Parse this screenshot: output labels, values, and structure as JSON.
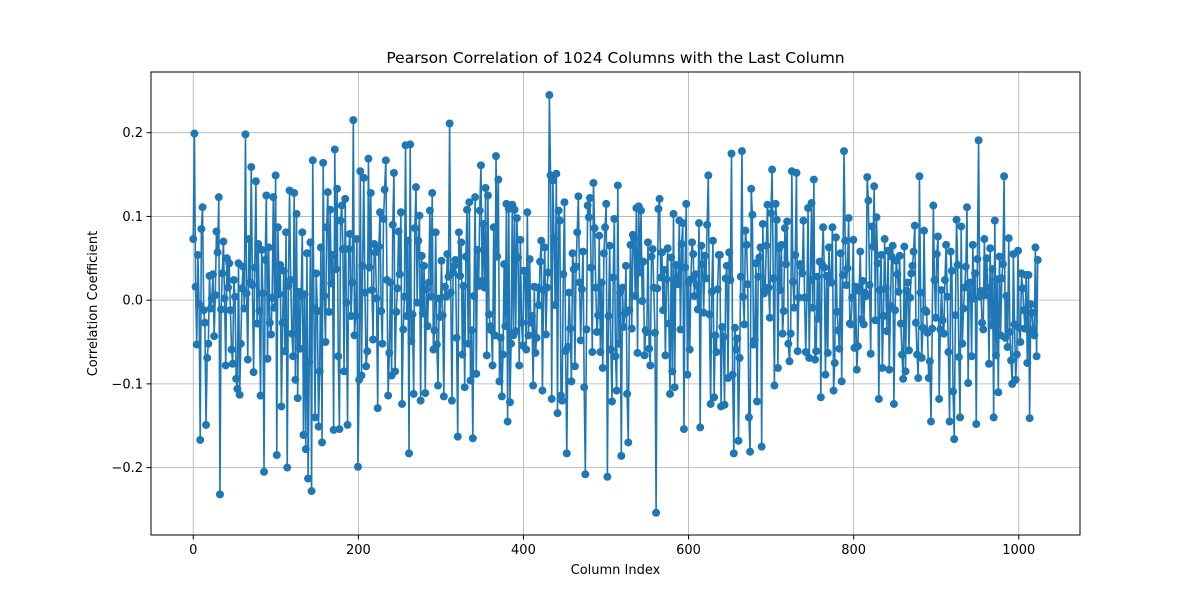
{
  "colors": {
    "series": "#1f77b4",
    "grid": "#b0b0b0",
    "axes": "#000000",
    "background": "#ffffff"
  },
  "chart_data": {
    "type": "line",
    "title": "Pearson Correlation of 1024 Columns with the Last Column",
    "xlabel": "Column Index",
    "ylabel": "Correlation Coefficient",
    "xlim": [
      -51.2,
      1074.2
    ],
    "ylim": [
      -0.2805,
      0.2725
    ],
    "xticks": [
      0,
      200,
      400,
      600,
      800,
      1000
    ],
    "yticks": [
      -0.2,
      -0.1,
      0.0,
      0.1,
      0.2
    ],
    "xtick_labels": [
      "0",
      "200",
      "400",
      "600",
      "800",
      "1000"
    ],
    "ytick_labels": [
      "−0.2",
      "−0.1",
      "0.0",
      "0.1",
      "0.2"
    ],
    "grid": true,
    "legend": "none",
    "marker": "circle",
    "series": [
      {
        "x_start": 0,
        "x_end": 1023,
        "values": [
          0.073,
          0.199,
          0.016,
          -0.053,
          0.054,
          -0.005,
          -0.167,
          0.085,
          0.111,
          -0.012,
          -0.027,
          -0.149,
          -0.069,
          -0.052,
          0.029,
          -0.01,
          0.002,
          0.031,
          -0.043,
          0.006,
          0.082,
          0.057,
          0.123,
          -0.232,
          -0.011,
          0.032,
          0.07,
          0.002,
          -0.078,
          0.05,
          0.015,
          0.044,
          -0.012,
          -0.059,
          -0.076,
          0.024,
          0.004,
          -0.094,
          -0.106,
          0.044,
          -0.113,
          -0.052,
          0.014,
          0.04,
          -0.01,
          0.198,
          0.008,
          -0.071,
          0.073,
          0.021,
          0.159,
          0.018,
          -0.086,
          0.039,
          0.142,
          -0.028,
          0.067,
          -0.013,
          -0.114,
          0.06,
          0.008,
          -0.205,
          0.048,
          0.125,
          -0.07,
          0.063,
          -0.027,
          -0.041,
          0.003,
          0.123,
          -0.009,
          0.149,
          -0.185,
          0.087,
          0.007,
          0.042,
          -0.127,
          -0.027,
          0.035,
          -0.061,
          0.081,
          -0.2,
          0.017,
          0.131,
          0.024,
          -0.04,
          -0.067,
          0.128,
          -0.095,
          0.103,
          -0.117,
          0.01,
          -0.058,
          0.005,
          0.081,
          -0.161,
          0.007,
          -0.178,
          0.056,
          -0.213,
          -0.074,
          0.069,
          -0.228,
          0.167,
          -0.01,
          -0.14,
          0.032,
          -0.013,
          -0.151,
          -0.085,
          0.063,
          -0.17,
          0.164,
          0.005,
          -0.05,
          0.087,
          0.129,
          -0.014,
          0.108,
          0.02,
          0.054,
          -0.155,
          0.18,
          0.037,
          0.133,
          -0.067,
          -0.154,
          0.095,
          0.113,
          0.061,
          -0.085,
          0.121,
          -0.003,
          -0.149,
          0.061,
          0.079,
          -0.019,
          0.021,
          0.215,
          -0.042,
          -0.019,
          0.073,
          -0.199,
          -0.095,
          0.154,
          -0.09,
          0.041,
          0.146,
          0.009,
          -0.079,
          -0.061,
          0.169,
          0.039,
          0.128,
          0.012,
          -0.047,
          0.067,
          0.057,
          0.002,
          -0.129,
          0.064,
          0.105,
          -0.013,
          -0.052,
          0.097,
          0.132,
          0.167,
          0.024,
          -0.114,
          -0.063,
          0.021,
          -0.09,
          0.09,
          0.152,
          -0.085,
          -0.014,
          0.014,
          0.082,
          0.031,
          0.105,
          -0.124,
          -0.035,
          0.004,
          0.185,
          -0.019,
          0.071,
          -0.183,
          0.186,
          -0.049,
          -0.017,
          -0.112,
          0.086,
          0.135,
          -0.003,
          0.071,
          0.101,
          -0.12,
          0.053,
          -0.016,
          0.041,
          -0.111,
          0.013,
          -0.031,
          0.021,
          0.107,
          0.004,
          0.128,
          -0.059,
          -0.036,
          0.081,
          -0.053,
          -0.102,
          0.002,
          -0.02,
          0.047,
          -0.018,
          -0.115,
          0.016,
          0.004,
          0.055,
          0.028,
          0.211,
          0.009,
          -0.12,
          0.033,
          0.041,
          0.048,
          -0.045,
          -0.163,
          0.081,
          0.029,
          0.069,
          -0.065,
          0.017,
          -0.104,
          0.052,
          0.108,
          -0.052,
          0.117,
          -0.096,
          -0.036,
          -0.165,
          0.005,
          0.123,
          -0.088,
          0.06,
          0.017,
          0.107,
          0.161,
          0.023,
          0.091,
          0.015,
          0.134,
          -0.066,
          0.125,
          -0.017,
          -0.031,
          -0.036,
          -0.078,
          0.087,
          -0.042,
          0.172,
          0.052,
          0.144,
          -0.097,
          -0.045,
          -0.115,
          -0.065,
          0.043,
          -0.031,
          0.115,
          -0.145,
          0.109,
          -0.122,
          -0.052,
          0.114,
          -0.042,
          0.108,
          -0.037,
          0.098,
          0.051,
          -0.078,
          0.072,
          -0.027,
          -0.054,
          0.035,
          0.035,
          -0.059,
          0.105,
          -0.042,
          0.049,
          -0.027,
          -0.019,
          -0.102,
          0.016,
          -0.063,
          -0.045,
          0.015,
          -0.006,
          0.046,
          0.071,
          -0.108,
          0.012,
          0.063,
          -0.041,
          0.015,
          0.033,
          0.245,
          0.149,
          -0.118,
          0.143,
          0.074,
          -0.006,
          0.151,
          -0.135,
          0.107,
          0.095,
          -0.114,
          -0.12,
          0.031,
          0.117,
          -0.061,
          -0.183,
          -0.056,
          0.009,
          -0.034,
          -0.097,
          0.056,
          0.037,
          -0.079,
          0.04,
          0.081,
          0.124,
          0.021,
          -0.048,
          0.013,
          0.058,
          -0.104,
          -0.208,
          -0.035,
          0.113,
          0.099,
          0.122,
          0.039,
          -0.062,
          0.14,
          0.086,
          0.015,
          -0.038,
          -0.018,
          0.077,
          -0.062,
          0.021,
          -0.081,
          0.056,
          0.087,
          0.115,
          -0.211,
          -0.019,
          0.065,
          -0.059,
          -0.121,
          0.027,
          0.097,
          -0.067,
          -0.108,
          0.137,
          -0.052,
          0.009,
          -0.186,
          0.015,
          -0.032,
          -0.016,
          0.041,
          -0.112,
          -0.17,
          -0.012,
          0.066,
          -0.034,
          0.078,
          0.074,
          0.005,
          0.11,
          -0.063,
          0.112,
          0.033,
          0.107,
          -0.001,
          0.046,
          -0.066,
          -0.036,
          -0.038,
          0.069,
          -0.058,
          -0.078,
          0.052,
          0.061,
          0.015,
          -0.039,
          -0.254,
          0.014,
          0.109,
          0.121,
          0.027,
          0.057,
          -0.012,
          0.036,
          -0.066,
          0.025,
          0.062,
          -0.028,
          -0.112,
          0.051,
          -0.085,
          0.103,
          -0.104,
          0.042,
          0.027,
          0.019,
          0.095,
          -0.035,
          0.067,
          0.092,
          -0.154,
          0.039,
          0.115,
          -0.089,
          0.021,
          -0.059,
          0.025,
          0.069,
          0.055,
          0.005,
          0.031,
          0.018,
          -0.011,
          0.092,
          -0.152,
          0.065,
          0.043,
          -0.015,
          0.053,
          0.026,
          0.09,
          0.149,
          -0.017,
          -0.124,
          0.01,
          0.071,
          -0.116,
          -0.042,
          -0.062,
          0.013,
          0.054,
          0.054,
          -0.127,
          -0.032,
          -0.044,
          -0.125,
          0.026,
          0.041,
          -0.093,
          0.057,
          0.024,
          0.175,
          -0.089,
          -0.183,
          -0.033,
          -0.059,
          -0.046,
          -0.168,
          -0.069,
          0.028,
          0.178,
          0.004,
          -0.029,
          0.083,
          0.066,
          0.019,
          -0.14,
          -0.181,
          0.133,
          0.102,
          -0.053,
          -0.048,
          0.044,
          -0.121,
          0.028,
          0.051,
          0.063,
          -0.175,
          0.091,
          0.008,
          0.012,
          0.065,
          0.114,
          0.015,
          -0.021,
          0.104,
          0.156,
          0.026,
          -0.102,
          0.115,
          0.096,
          -0.081,
          0.062,
          0.012,
          0.066,
          -0.04,
          -0.013,
          0.086,
          0.043,
          0.094,
          -0.052,
          -0.073,
          -0.04,
          0.154,
          0.022,
          -0.009,
          0.054,
          0.152,
          -0.061,
          0.003,
          0.043,
          0.04,
          0.032,
          0.095,
          0.003,
          -0.062,
          0.003,
          0.11,
          -0.069,
          0.024,
          0.116,
          -0.009,
          0.144,
          -0.071,
          -0.061,
          0.028,
          -0.022,
          0.046,
          -0.116,
          0.043,
          0.087,
          0.039,
          -0.089,
          0.029,
          -0.063,
          0.063,
          0.023,
          0.021,
          0.087,
          -0.108,
          -0.075,
          0.075,
          -0.014,
          -0.036,
          -0.058,
          0.056,
          -0.097,
          0.03,
          0.178,
          0.071,
          0.018,
          0.038,
          0.098,
          -0.028,
          -0.029,
          0.003,
          0.072,
          -0.057,
          0.016,
          -0.083,
          -0.055,
          0.011,
          0.058,
          -0.023,
          0.023,
          -0.029,
          0.009,
          0.005,
          0.147,
          0.119,
          0.018,
          -0.064,
          0.088,
          0.064,
          0.136,
          -0.024,
          0.099,
          0.044,
          -0.118,
          0.012,
          0.054,
          -0.081,
          -0.019,
          0.073,
          0.014,
          -0.037,
          0.059,
          -0.083,
          -0.007,
          0.052,
          0.065,
          -0.124,
          -0.012,
          0.047,
          0.031,
          0.01,
          0.053,
          -0.028,
          -0.065,
          -0.094,
          0.064,
          -0.085,
          0.011,
          0.021,
          -0.06,
          0.003,
          0.032,
          0.041,
          0.058,
          0.089,
          -0.027,
          -0.065,
          -0.093,
          0.148,
          0.009,
          -0.069,
          -0.033,
          0.083,
          -0.012,
          -0.014,
          -0.039,
          -0.093,
          -0.073,
          -0.145,
          -0.034,
          0.113,
          0.024,
          -0.021,
          0.055,
          0.076,
          -0.118,
          -0.035,
          0.012,
          -0.024,
          -0.04,
          0.024,
          0.066,
          0.004,
          -0.062,
          -0.145,
          0.058,
          0.035,
          -0.109,
          -0.166,
          -0.018,
          0.096,
          0.042,
          -0.068,
          -0.14,
          0.088,
          -0.052,
          -0.01,
          0.015,
          0.04,
          0.111,
          -0.099,
          0.021,
          0.021,
          -0.067,
          0.066,
          0.002,
          0.032,
          -0.148,
          0.049,
          0.191,
          0.004,
          0.011,
          -0.027,
          -0.035,
          0.073,
          0.006,
          0.05,
          0.015,
          -0.076,
          0.062,
          -0.03,
          0.037,
          -0.14,
          0.095,
          -0.066,
          0.025,
          -0.11,
          0.052,
          -0.042,
          0.026,
          0.043,
          0.148,
          -0.045,
          0.005,
          -0.056,
          0.074,
          -0.038,
          -0.072,
          -0.1,
          0.055,
          -0.029,
          -0.095,
          -0.065,
          0.059,
          -0.033,
          -0.05,
          0.032,
          0.014,
          -0.012,
          -0.034,
          0.03,
          -0.075,
          0.03,
          -0.141,
          -0.005,
          -0.015,
          -0.035,
          -0.042,
          0.063,
          -0.067,
          0.048
        ]
      }
    ]
  }
}
